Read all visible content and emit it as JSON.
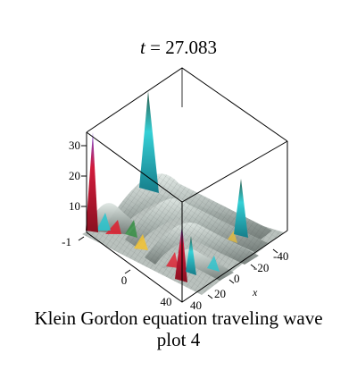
{
  "chart_data": {
    "type": "surface",
    "title": {
      "variable": "t",
      "operator": " = ",
      "value": "27.083"
    },
    "caption": [
      "Klein Gordon equation  traveling wave",
      "plot 4"
    ],
    "axes": {
      "z": {
        "ticks": [
          10,
          20,
          30
        ],
        "range": [
          0,
          35
        ]
      },
      "left_base": {
        "ticks": [
          -1,
          0,
          40
        ]
      },
      "right_base": {
        "label": "x",
        "ticks": [
          -40,
          -20,
          0,
          20,
          40
        ]
      }
    },
    "style": {
      "box_color": "#000000",
      "surface_colors": [
        "#e11d2e",
        "#f2c230",
        "#29c6cf",
        "#2f8f3e",
        "#b23fd6",
        "#8d8d8d"
      ]
    }
  }
}
